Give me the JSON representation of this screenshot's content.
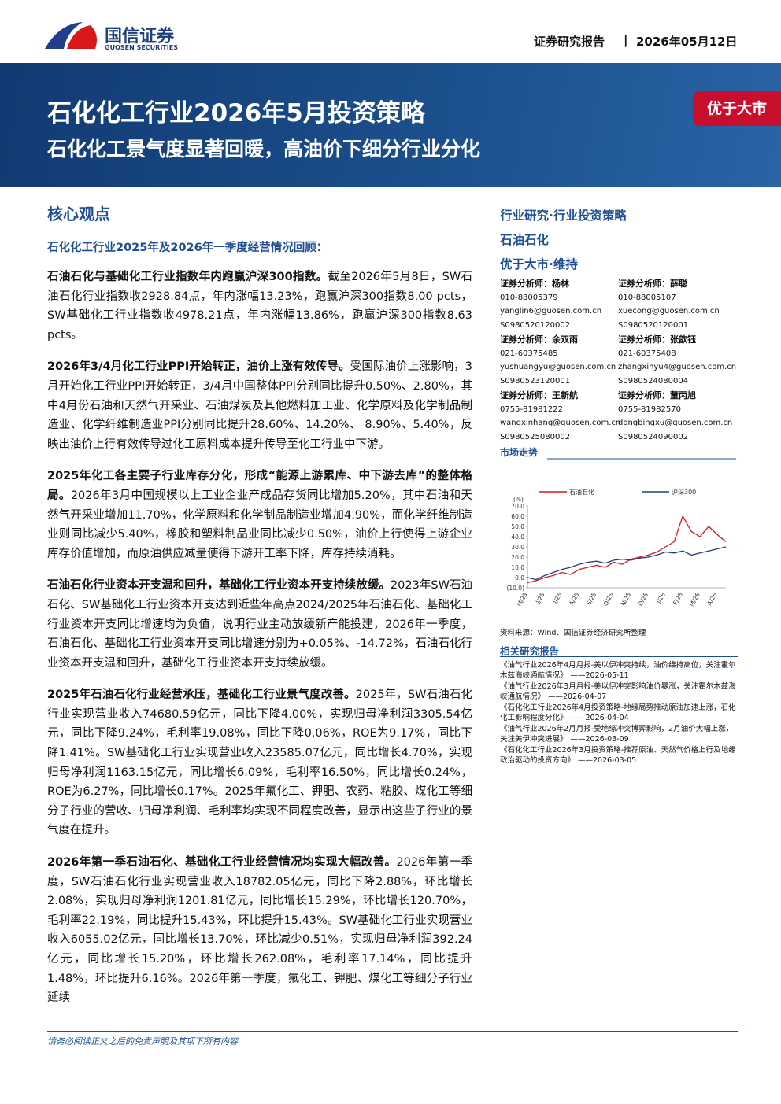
{
  "header": {
    "logo_cn": "国信证券",
    "logo_en": "GUOSEN SECURITIES",
    "report_type": "证券研究报告",
    "date": "2026年05月12日"
  },
  "banner": {
    "title": "石化化工行业2026年5月投资策略",
    "subtitle": "石化化工景气度显著回暖，高油价下细分行业分化",
    "rating": "优于大市"
  },
  "core": {
    "heading": "核心观点",
    "subheading": "石化化工行业2025年及2026年一季度经营情况回顾：",
    "paragraphs": [
      {
        "lead": "石油石化与基础化工行业指数年内跑赢沪深300指数。",
        "body": "截至2026年5月8日，SW石油石化行业指数收2928.84点，年内涨幅13.23%，跑赢沪深300指数8.00 pcts，SW基础化工行业指数收4978.21点，年内涨幅13.86%，跑赢沪深300指数8.63 pcts。"
      },
      {
        "lead": "2026年3/4月化工行业PPI开始转正，油价上涨有效传导。",
        "body": "受国际油价上涨影响，3月开始化工行业PPI开始转正，3/4月中国整体PPI分别同比提升0.50%、2.80%，其中4月份石油和天然气开采业、石油煤炭及其他燃料加工业、化学原料及化学制品制造业、化学纤维制造业PPI分别同比提升28.60%、14.20%、 8.90%、5.40%，反映出油价上行有效传导过化工原料成本提升传导至化工行业中下游。"
      },
      {
        "lead": "2025年化工各主要子行业库存分化，形成“能源上游累库、中下游去库”的整体格局。",
        "body": "2026年3月中国规模以上工业企业产成品存货同比增加5.20%，其中石油和天然气开采业增加11.70%，化学原料和化学制品制造业增加4.90%，而化学纤维制造业则同比减少5.40%，橡胶和塑料制品业同比减少0.50%，油价上行使得上游企业库存价值增加，而原油供应减量使得下游开工率下降，库存持续消耗。"
      },
      {
        "lead": "石油石化行业资本开支温和回升，基础化工行业资本开支持续放缓。",
        "body": "2023年SW石油石化、SW基础化工行业资本开支达到近些年高点2024/2025年石油石化、基础化工行业资本开支同比增速均为负值，说明行业主动放缓新产能投建，2026年一季度，石油石化、基础化工行业资本开支同比增速分别为+0.05%、-14.72%，石油石化行业资本开支温和回升，基础化工行业资本开支持续放缓。"
      },
      {
        "lead": "2025年石油石化行业经营承压，基础化工行业景气度改善。",
        "body": "2025年，SW石油石化行业实现营业收入74680.59亿元，同比下降4.00%，实现归母净利润3305.54亿元，同比下降9.24%，毛利率19.08%，同比下降0.06%，ROE为9.17%，同比下降1.41%。SW基础化工行业实现营业收入23585.07亿元，同比增长4.70%，实现归母净利润1163.15亿元，同比增长6.09%，毛利率16.50%，同比增长0.24%，ROE为6.27%，同比增长0.17%。2025年氟化工、钾肥、农药、粘胶、煤化工等细分子行业的营收、归母净利润、毛利率均实现不同程度改善，显示出这些子行业的景气度在提升。"
      },
      {
        "lead": "2026年第一季石油石化、基础化工行业经营情况均实现大幅改善。",
        "body": "2026年第一季度，SW石油石化行业实现营业收入18782.05亿元，同比下降2.88%，环比增长2.08%，实现归母净利润1201.81亿元，同比增长15.29%，环比增长120.70%，毛利率22.19%，同比提升15.43%，环比提升15.43%。SW基础化工行业实现营业收入6055.02亿元，同比增长13.70%，环比减少0.51%，实现归母净利润392.24亿元，同比增长15.20%，环比增长262.08%，毛利率17.14%，同比提升1.48%，环比提升6.16%。2026年第一季度，氟化工、钾肥、煤化工等细分子行业延续"
      }
    ]
  },
  "sidebar": {
    "category": "行业研究·行业投资策略",
    "industry": "石油石化",
    "rating": "优于大市·维持"
  },
  "analysts": [
    {
      "label": "证券分析师：杨林",
      "phone": "010-88005379",
      "email": "yanglin6@guosen.com.cn",
      "cert": "S0980520120002"
    },
    {
      "label": "证券分析师：薛聪",
      "phone": "010-88005107",
      "email": "xuecong@guosen.com.cn",
      "cert": "S0980520120001"
    },
    {
      "label": "证券分析师：余双雨",
      "phone": "021-60375485",
      "email": "yushuangyu@guosen.com.cn",
      "cert": "S0980523120001"
    },
    {
      "label": "证券分析师：张歆钰",
      "phone": "021-60375408",
      "email": "zhangxinyu4@guosen.com.cn",
      "cert": "S0980524080004"
    },
    {
      "label": "证券分析师：王新航",
      "phone": "0755-81981222",
      "email": "wangxinhang@guosen.com.cn",
      "cert": "S0980525080002"
    },
    {
      "label": "证券分析师：董丙旭",
      "phone": "0755-81982570",
      "email": "dongbingxu@guosen.com.cn",
      "cert": "S0980524090002"
    }
  ],
  "chart_data": {
    "type": "line",
    "title": "市场走势",
    "y_unit": "(%)",
    "source": "资料来源：Wind、国信证券经济研究所整理",
    "categories": [
      "M/25",
      null,
      "J/25",
      null,
      "J/25",
      null,
      "A/25",
      null,
      "S/25",
      null,
      "O/25",
      null,
      "N/25",
      null,
      "D/25",
      null,
      "J/26",
      null,
      "F/26",
      null,
      "M/26",
      null,
      "A/26",
      null
    ],
    "series": [
      {
        "name": "石油石化",
        "color": "#d7191c",
        "values": [
          -5,
          -3,
          0,
          2,
          5,
          3,
          8,
          10,
          12,
          10,
          15,
          13,
          18,
          20,
          22,
          25,
          30,
          35,
          60,
          45,
          40,
          50,
          42,
          35
        ]
      },
      {
        "name": "沪深300",
        "color": "#1f3f7a",
        "values": [
          0,
          -2,
          2,
          5,
          8,
          10,
          13,
          15,
          16,
          14,
          17,
          18,
          17,
          19,
          20,
          22,
          25,
          24,
          26,
          22,
          24,
          26,
          28,
          30
        ]
      }
    ],
    "ylim": [
      -10,
      70
    ],
    "yticks": [
      {
        "value": 70,
        "label": "70.0"
      },
      {
        "value": 60,
        "label": "60.0"
      },
      {
        "value": 50,
        "label": "50.0"
      },
      {
        "value": 40,
        "label": "40.0"
      },
      {
        "value": 30,
        "label": "30.0"
      },
      {
        "value": 20,
        "label": "20.0"
      },
      {
        "value": 10,
        "label": "10.0"
      },
      {
        "value": 0,
        "label": "0.0"
      },
      {
        "value": -10,
        "label": "(10.0)"
      }
    ]
  },
  "related": {
    "heading": "相关研究报告",
    "items": [
      {
        "title": "《油气行业2026年4月月报-美以伊冲突持续，油价维持高位，关注霍尔木兹海峡通航情况》",
        "date": "——2026-05-11"
      },
      {
        "title": "《油气行业2026年3月月报-美以伊冲突影响油价暴涨，关注霍尔木兹海峡通航情况》",
        "date": "——2026-04-07"
      },
      {
        "title": "《石化化工行业2026年4月投资策略-地缘局势推动原油加速上涨，石化化工影响程度分化》",
        "date": "——2026-04-04"
      },
      {
        "title": "《油气行业2026年2月月报-受地缘冲突博弈影响，2月油价大幅上涨，关注美伊冲突进展》",
        "date": "——2026-03-09"
      },
      {
        "title": "《石化化工行业2026年3月投资策略-推荐原油、天然气价格上行及地缘政治驱动的投资方向》",
        "date": "——2026-03-05"
      }
    ]
  },
  "footer": {
    "disclaimer": "请务必阅读正文之后的免责声明及其项下所有内容"
  }
}
